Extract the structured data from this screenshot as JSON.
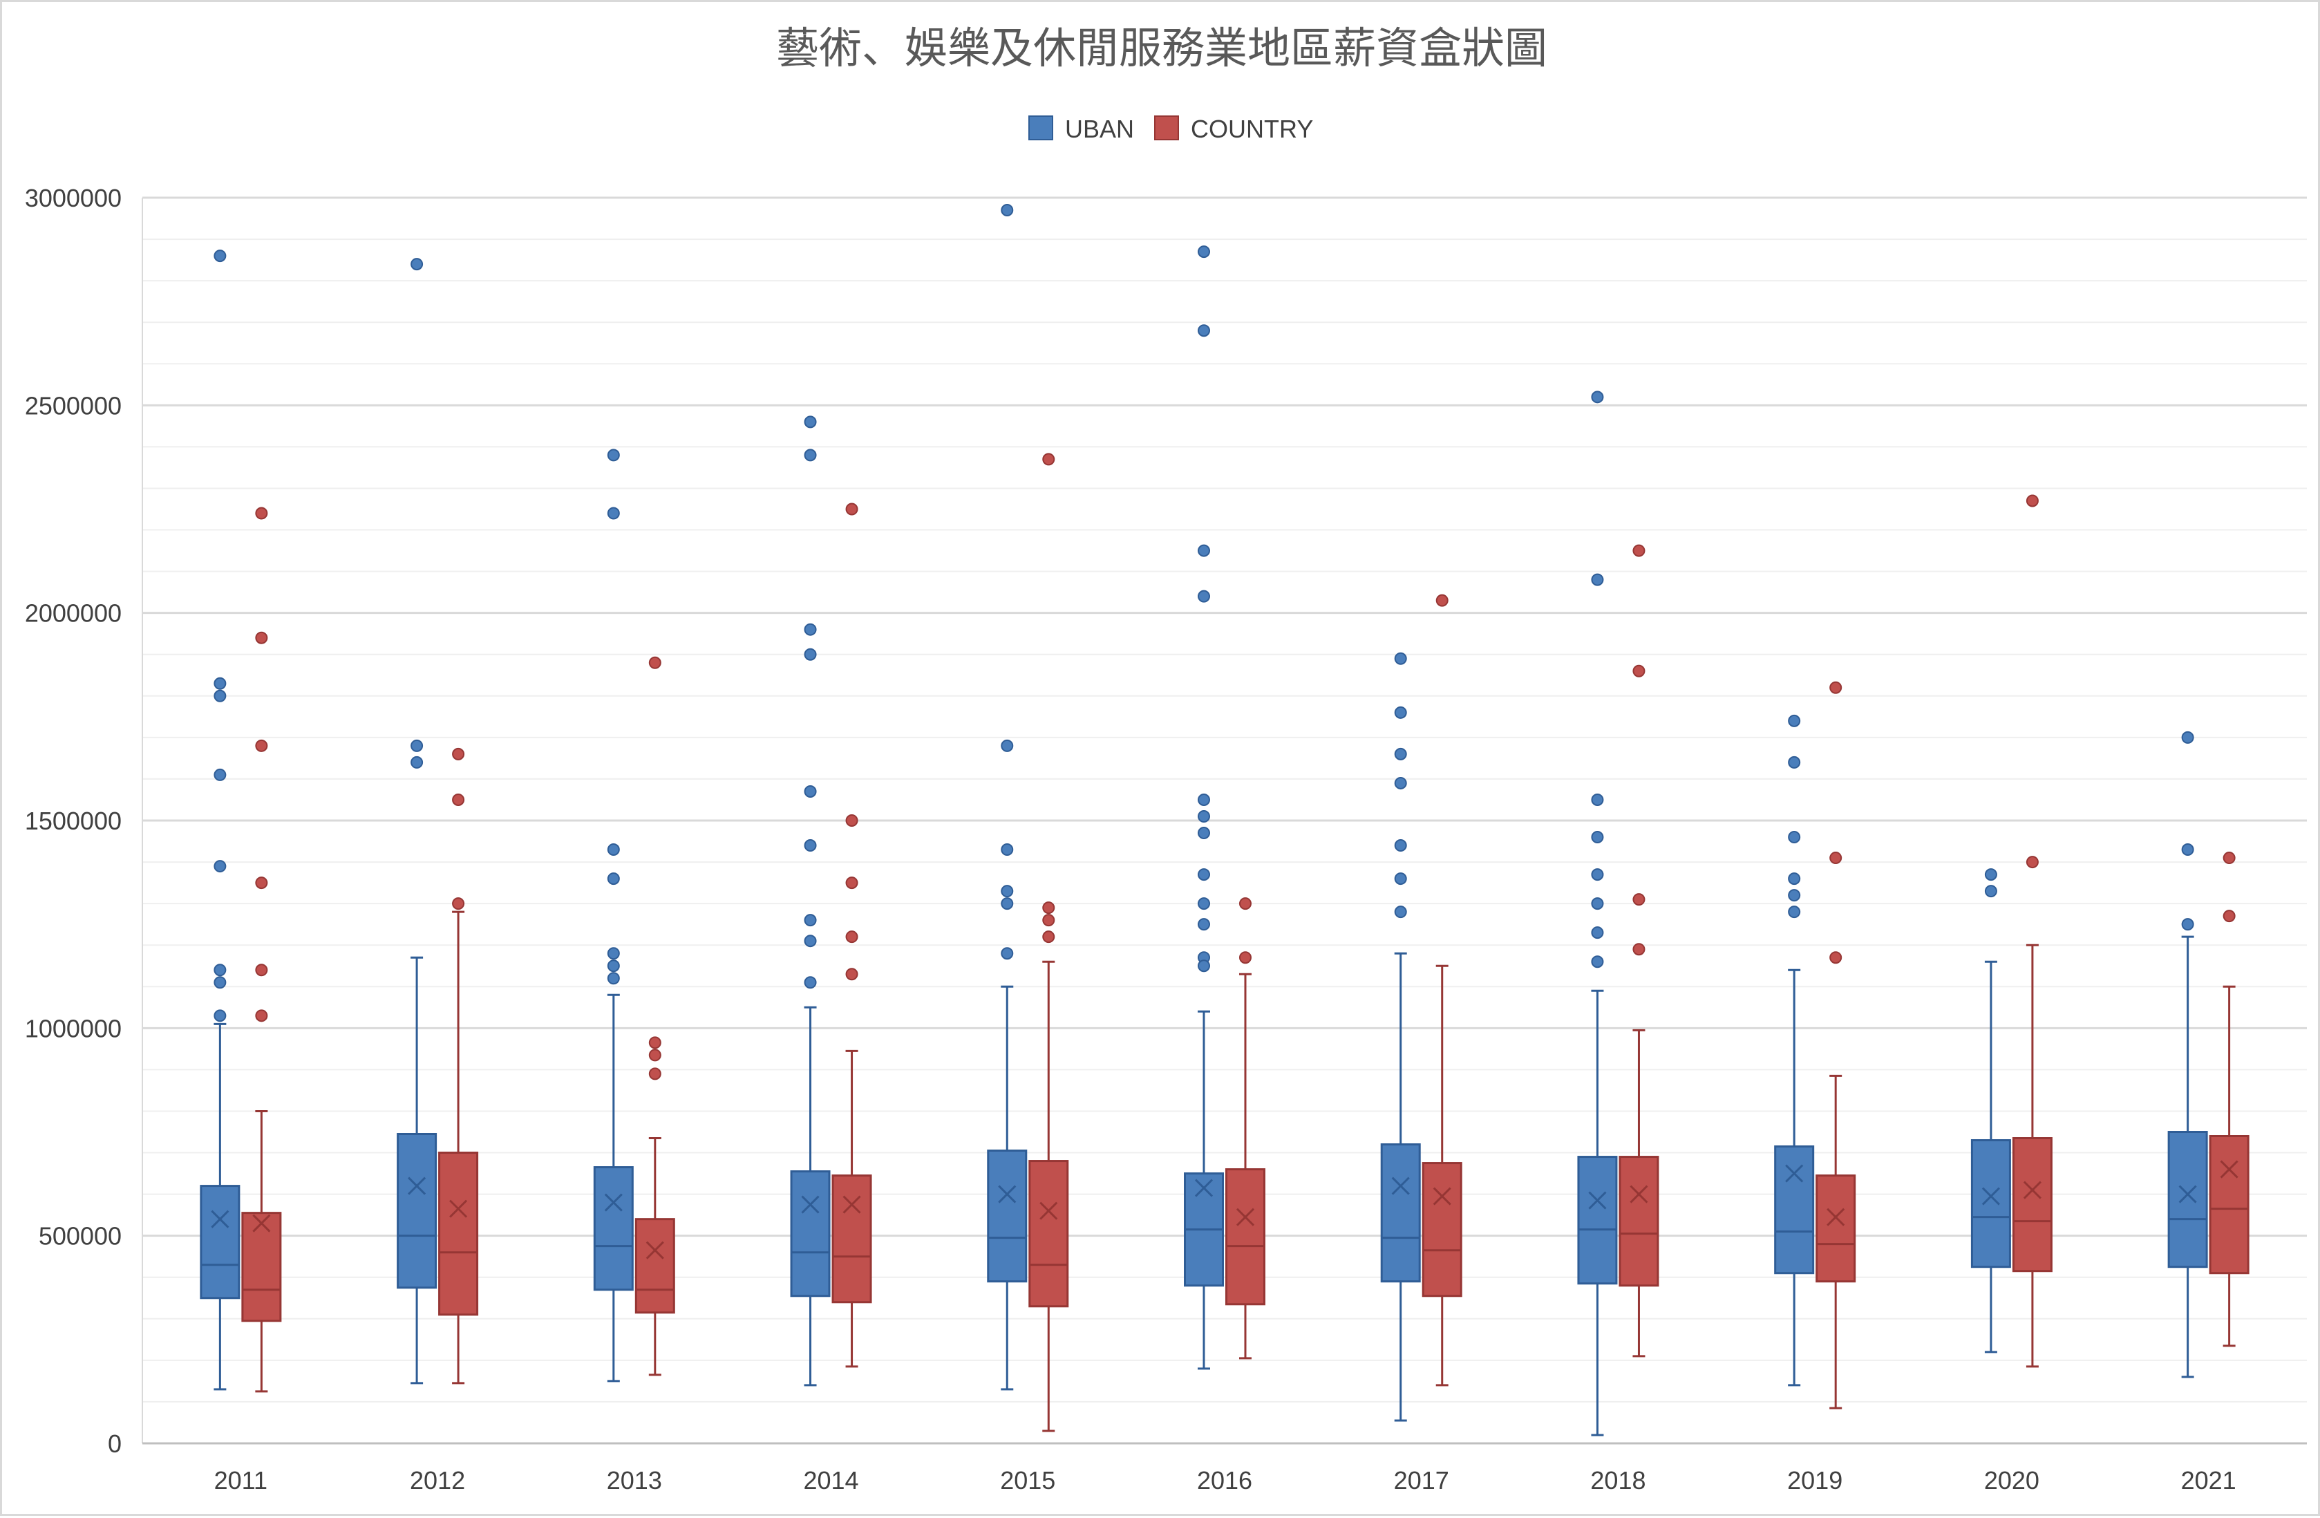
{
  "chart_data": {
    "type": "box",
    "title": "藝術、娛樂及休閒服務業地區薪資盒狀圖",
    "xlabel": "",
    "ylabel": "",
    "ylim": [
      0,
      3000000
    ],
    "y_major_step": 500000,
    "y_minor_step": 100000,
    "y_ticks": [
      "0",
      "500000",
      "1000000",
      "1500000",
      "2000000",
      "2500000",
      "3000000"
    ],
    "grid": true,
    "legend_position": "top",
    "categories": [
      "2011",
      "2012",
      "2013",
      "2014",
      "2015",
      "2016",
      "2017",
      "2018",
      "2019",
      "2020",
      "2021"
    ],
    "series": [
      {
        "name": "UBAN",
        "color": "#4a7ebb",
        "edge_color": "#2f5d96",
        "boxes": [
          {
            "min": 130000,
            "q1": 350000,
            "median": 430000,
            "q3": 620000,
            "max": 1010000,
            "mean": 540000,
            "outliers": [
              2860000,
              1830000,
              1800000,
              1610000,
              1390000,
              1140000,
              1110000,
              1030000
            ]
          },
          {
            "min": 145000,
            "q1": 375000,
            "median": 500000,
            "q3": 745000,
            "max": 1170000,
            "mean": 620000,
            "outliers": [
              2840000,
              1680000,
              1640000
            ]
          },
          {
            "min": 150000,
            "q1": 370000,
            "median": 475000,
            "q3": 665000,
            "max": 1080000,
            "mean": 580000,
            "outliers": [
              2380000,
              2240000,
              1430000,
              1360000,
              1180000,
              1150000,
              1120000
            ]
          },
          {
            "min": 140000,
            "q1": 355000,
            "median": 460000,
            "q3": 655000,
            "max": 1050000,
            "mean": 575000,
            "outliers": [
              2460000,
              2380000,
              1960000,
              1900000,
              1570000,
              1440000,
              1260000,
              1210000,
              1110000
            ]
          },
          {
            "min": 130000,
            "q1": 390000,
            "median": 495000,
            "q3": 705000,
            "max": 1100000,
            "mean": 600000,
            "outliers": [
              2970000,
              1680000,
              1430000,
              1330000,
              1300000,
              1180000
            ]
          },
          {
            "min": 180000,
            "q1": 380000,
            "median": 515000,
            "q3": 650000,
            "max": 1040000,
            "mean": 615000,
            "outliers": [
              2870000,
              2680000,
              2150000,
              2040000,
              1550000,
              1510000,
              1470000,
              1370000,
              1300000,
              1250000,
              1170000,
              1150000
            ]
          },
          {
            "min": 55000,
            "q1": 390000,
            "median": 495000,
            "q3": 720000,
            "max": 1180000,
            "mean": 620000,
            "outliers": [
              1890000,
              1760000,
              1660000,
              1590000,
              1440000,
              1360000,
              1280000
            ]
          },
          {
            "min": 20000,
            "q1": 385000,
            "median": 515000,
            "q3": 690000,
            "max": 1090000,
            "mean": 585000,
            "outliers": [
              2520000,
              2080000,
              1550000,
              1460000,
              1370000,
              1300000,
              1230000,
              1160000
            ]
          },
          {
            "min": 140000,
            "q1": 410000,
            "median": 510000,
            "q3": 715000,
            "max": 1140000,
            "mean": 650000,
            "outliers": [
              1740000,
              1640000,
              1460000,
              1360000,
              1320000,
              1280000
            ]
          },
          {
            "min": 220000,
            "q1": 425000,
            "median": 545000,
            "q3": 730000,
            "max": 1160000,
            "mean": 595000,
            "outliers": [
              1370000,
              1330000
            ]
          },
          {
            "min": 160000,
            "q1": 425000,
            "median": 540000,
            "q3": 750000,
            "max": 1220000,
            "mean": 600000,
            "outliers": [
              1700000,
              1430000,
              1250000
            ]
          }
        ]
      },
      {
        "name": "COUNTRY",
        "color": "#c0504d",
        "edge_color": "#963634",
        "boxes": [
          {
            "min": 125000,
            "q1": 295000,
            "median": 370000,
            "q3": 555000,
            "max": 800000,
            "mean": 530000,
            "outliers": [
              2240000,
              1940000,
              1680000,
              1350000,
              1140000,
              1030000
            ]
          },
          {
            "min": 145000,
            "q1": 310000,
            "median": 460000,
            "q3": 700000,
            "max": 1280000,
            "mean": 565000,
            "outliers": [
              1660000,
              1550000,
              1300000
            ]
          },
          {
            "min": 165000,
            "q1": 315000,
            "median": 370000,
            "q3": 540000,
            "max": 735000,
            "mean": 465000,
            "outliers": [
              1880000,
              965000,
              935000,
              890000
            ]
          },
          {
            "min": 185000,
            "q1": 340000,
            "median": 450000,
            "q3": 645000,
            "max": 945000,
            "mean": 575000,
            "outliers": [
              2250000,
              1500000,
              1350000,
              1220000,
              1130000
            ]
          },
          {
            "min": 30000,
            "q1": 330000,
            "median": 430000,
            "q3": 680000,
            "max": 1160000,
            "mean": 560000,
            "outliers": [
              2370000,
              1290000,
              1260000,
              1220000
            ]
          },
          {
            "min": 205000,
            "q1": 335000,
            "median": 475000,
            "q3": 660000,
            "max": 1130000,
            "mean": 545000,
            "outliers": [
              1300000,
              1170000
            ]
          },
          {
            "min": 140000,
            "q1": 355000,
            "median": 465000,
            "q3": 675000,
            "max": 1150000,
            "mean": 595000,
            "outliers": [
              2030000
            ]
          },
          {
            "min": 210000,
            "q1": 380000,
            "median": 505000,
            "q3": 690000,
            "max": 995000,
            "mean": 600000,
            "outliers": [
              2150000,
              1860000,
              1310000,
              1190000
            ]
          },
          {
            "min": 85000,
            "q1": 390000,
            "median": 480000,
            "q3": 645000,
            "max": 885000,
            "mean": 545000,
            "outliers": [
              1820000,
              1410000,
              1170000
            ]
          },
          {
            "min": 185000,
            "q1": 415000,
            "median": 535000,
            "q3": 735000,
            "max": 1200000,
            "mean": 610000,
            "outliers": [
              2270000,
              1400000
            ]
          },
          {
            "min": 235000,
            "q1": 410000,
            "median": 565000,
            "q3": 740000,
            "max": 1100000,
            "mean": 660000,
            "outliers": [
              1410000,
              1270000
            ]
          }
        ]
      }
    ]
  }
}
